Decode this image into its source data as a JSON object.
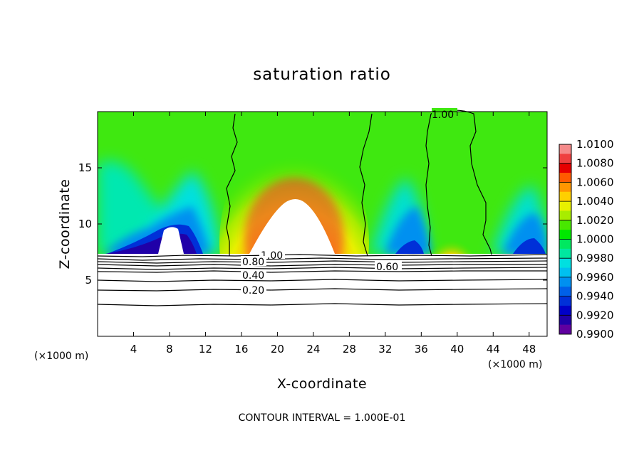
{
  "chart_data": {
    "type": "heatmap",
    "title": "saturation ratio",
    "xlabel": "X-coordinate",
    "ylabel": "Z-coordinate",
    "x_unit_left": "(×1000 m)",
    "x_unit_right": "(×1000 m)",
    "xlim": [
      0,
      50
    ],
    "ylim": [
      0,
      20
    ],
    "xticks": [
      "4",
      "8",
      "12",
      "16",
      "20",
      "24",
      "28",
      "32",
      "36",
      "40",
      "44",
      "48"
    ],
    "yticks": [
      "5",
      "10",
      "15"
    ],
    "colorbar": {
      "levels": [
        "1.0100",
        "1.0080",
        "1.0060",
        "1.0040",
        "1.0020",
        "1.0000",
        "0.9980",
        "0.9960",
        "0.9940",
        "0.9920",
        "0.9900"
      ],
      "colors": [
        "#f58a8a",
        "#ef4040",
        "#e60000",
        "#ff5a00",
        "#ff9600",
        "#ffd000",
        "#e8f000",
        "#a8ec00",
        "#48e800",
        "#00e800",
        "#00e860",
        "#00e8a0",
        "#00e0e0",
        "#00c0f0",
        "#0090f0",
        "#0060e8",
        "#0030d8",
        "#0000c8",
        "#2000a8",
        "#6000a0"
      ]
    },
    "contour_labels": [
      "1.00",
      "1.00",
      "0.80",
      "0.40",
      "0.20",
      "0.60"
    ],
    "note": "CONTOUR INTERVAL = 1.000E-01"
  }
}
